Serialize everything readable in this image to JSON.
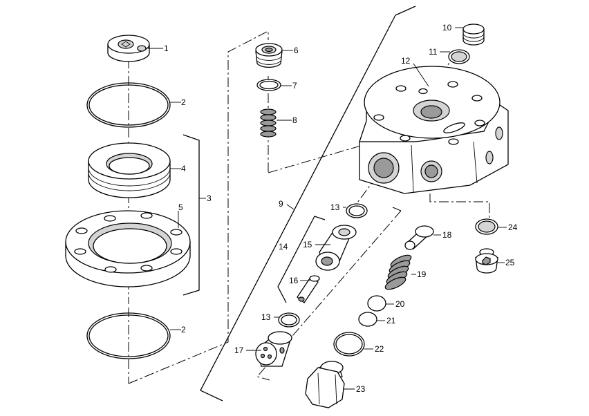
{
  "callouts": [
    {
      "id": "c1",
      "label": "1"
    },
    {
      "id": "c2a",
      "label": "2"
    },
    {
      "id": "c2b",
      "label": "2"
    },
    {
      "id": "c3",
      "label": "3"
    },
    {
      "id": "c4",
      "label": "4"
    },
    {
      "id": "c5",
      "label": "5"
    },
    {
      "id": "c6",
      "label": "6"
    },
    {
      "id": "c7",
      "label": "7"
    },
    {
      "id": "c8",
      "label": "8"
    },
    {
      "id": "c9",
      "label": "9"
    },
    {
      "id": "c10",
      "label": "10"
    },
    {
      "id": "c11",
      "label": "11"
    },
    {
      "id": "c12",
      "label": "12"
    },
    {
      "id": "c13a",
      "label": "13"
    },
    {
      "id": "c13b",
      "label": "13"
    },
    {
      "id": "c14",
      "label": "14"
    },
    {
      "id": "c15",
      "label": "15"
    },
    {
      "id": "c16",
      "label": "16"
    },
    {
      "id": "c17",
      "label": "17"
    },
    {
      "id": "c18",
      "label": "18"
    },
    {
      "id": "c19",
      "label": "19"
    },
    {
      "id": "c20",
      "label": "20"
    },
    {
      "id": "c21",
      "label": "21"
    },
    {
      "id": "c22",
      "label": "22"
    },
    {
      "id": "c23",
      "label": "23"
    },
    {
      "id": "c24",
      "label": "24"
    },
    {
      "id": "c25",
      "label": "25"
    }
  ]
}
